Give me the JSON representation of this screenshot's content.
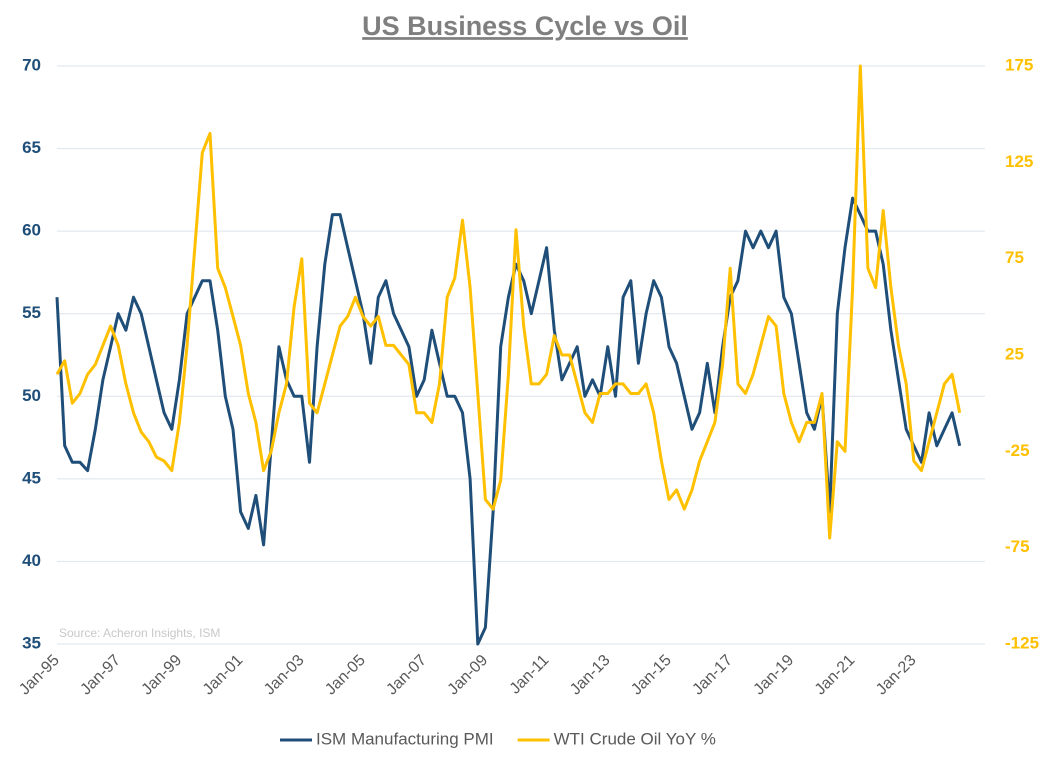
{
  "chart_data": {
    "type": "line",
    "title": "US Business Cycle vs Oil",
    "source": "Source: Acheron Insights, ISM",
    "categories": [
      "Jan-95",
      null,
      null,
      null,
      null,
      null,
      null,
      null,
      "Jan-97",
      null,
      null,
      null,
      null,
      null,
      null,
      null,
      "Jan-99",
      null,
      null,
      null,
      null,
      null,
      null,
      null,
      "Jan-01",
      null,
      null,
      null,
      null,
      null,
      null,
      null,
      "Jan-03",
      null,
      null,
      null,
      null,
      null,
      null,
      null,
      "Jan-05",
      null,
      null,
      null,
      null,
      null,
      null,
      null,
      "Jan-07",
      null,
      null,
      null,
      null,
      null,
      null,
      null,
      "Jan-09",
      null,
      null,
      null,
      null,
      null,
      null,
      null,
      "Jan-11",
      null,
      null,
      null,
      null,
      null,
      null,
      null,
      "Jan-13",
      null,
      null,
      null,
      null,
      null,
      null,
      null,
      "Jan-15",
      null,
      null,
      null,
      null,
      null,
      null,
      null,
      "Jan-17",
      null,
      null,
      null,
      null,
      null,
      null,
      null,
      "Jan-19",
      null,
      null,
      null,
      null,
      null,
      null,
      null,
      "Jan-21",
      null,
      null,
      null,
      null,
      null,
      null,
      null,
      "Jan-23",
      null,
      null,
      null,
      null,
      null,
      null
    ],
    "series": [
      {
        "name": "ISM Manufacturing PMI",
        "color": "#1f4e79",
        "values": [
          56,
          47,
          46,
          46,
          45.5,
          48,
          51,
          53,
          55,
          54,
          56,
          55,
          53,
          51,
          49,
          48,
          51,
          55,
          56,
          57,
          57,
          54,
          50,
          48,
          43,
          42,
          44,
          41,
          47,
          53,
          51,
          50,
          50,
          46,
          53,
          58,
          61,
          61,
          59,
          57,
          55,
          52,
          56,
          57,
          55,
          54,
          53,
          50,
          51,
          54,
          52,
          50,
          50,
          49,
          45,
          35,
          36,
          43,
          53,
          56,
          58,
          57,
          55,
          57,
          59,
          54,
          51,
          52,
          53,
          50,
          51,
          50,
          53,
          50,
          56,
          57,
          52,
          55,
          57,
          56,
          53,
          52,
          50,
          48,
          49,
          52,
          49,
          53,
          56,
          57,
          60,
          59,
          60,
          59,
          60,
          56,
          55,
          52,
          49,
          48,
          50,
          43,
          55,
          59,
          62,
          61,
          60,
          60,
          58,
          54,
          51,
          48,
          47,
          46,
          49,
          47,
          48,
          49,
          47
        ]
      },
      {
        "name": "WTI Crude Oil YoY %",
        "color": "#ffc000",
        "axis": "y2",
        "values": [
          15,
          22,
          0,
          5,
          15,
          20,
          30,
          40,
          30,
          10,
          -5,
          -15,
          -20,
          -28,
          -30,
          -35,
          -10,
          30,
          80,
          130,
          140,
          70,
          60,
          45,
          30,
          5,
          -10,
          -35,
          -25,
          -5,
          10,
          50,
          75,
          0,
          -5,
          10,
          25,
          40,
          45,
          55,
          45,
          40,
          45,
          30,
          30,
          25,
          20,
          -5,
          -5,
          -10,
          10,
          55,
          65,
          95,
          60,
          5,
          -50,
          -55,
          -40,
          15,
          90,
          40,
          10,
          10,
          15,
          35,
          25,
          25,
          10,
          -5,
          -10,
          5,
          5,
          10,
          10,
          5,
          5,
          10,
          -5,
          -30,
          -50,
          -45,
          -55,
          -45,
          -30,
          -20,
          -10,
          20,
          70,
          10,
          5,
          15,
          30,
          45,
          40,
          5,
          -10,
          -20,
          -10,
          -10,
          5,
          -70,
          -20,
          -25,
          60,
          175,
          70,
          60,
          100,
          60,
          30,
          10,
          -30,
          -35,
          -20,
          -5,
          10,
          15,
          -5
        ]
      }
    ],
    "ylim": [
      35,
      70
    ],
    "yticks": [
      35,
      40,
      45,
      50,
      55,
      60,
      65,
      70
    ],
    "y2lim": [
      -125,
      175
    ],
    "y2ticks": [
      -125,
      -75,
      -25,
      25,
      75,
      125,
      175
    ],
    "grid": true
  }
}
